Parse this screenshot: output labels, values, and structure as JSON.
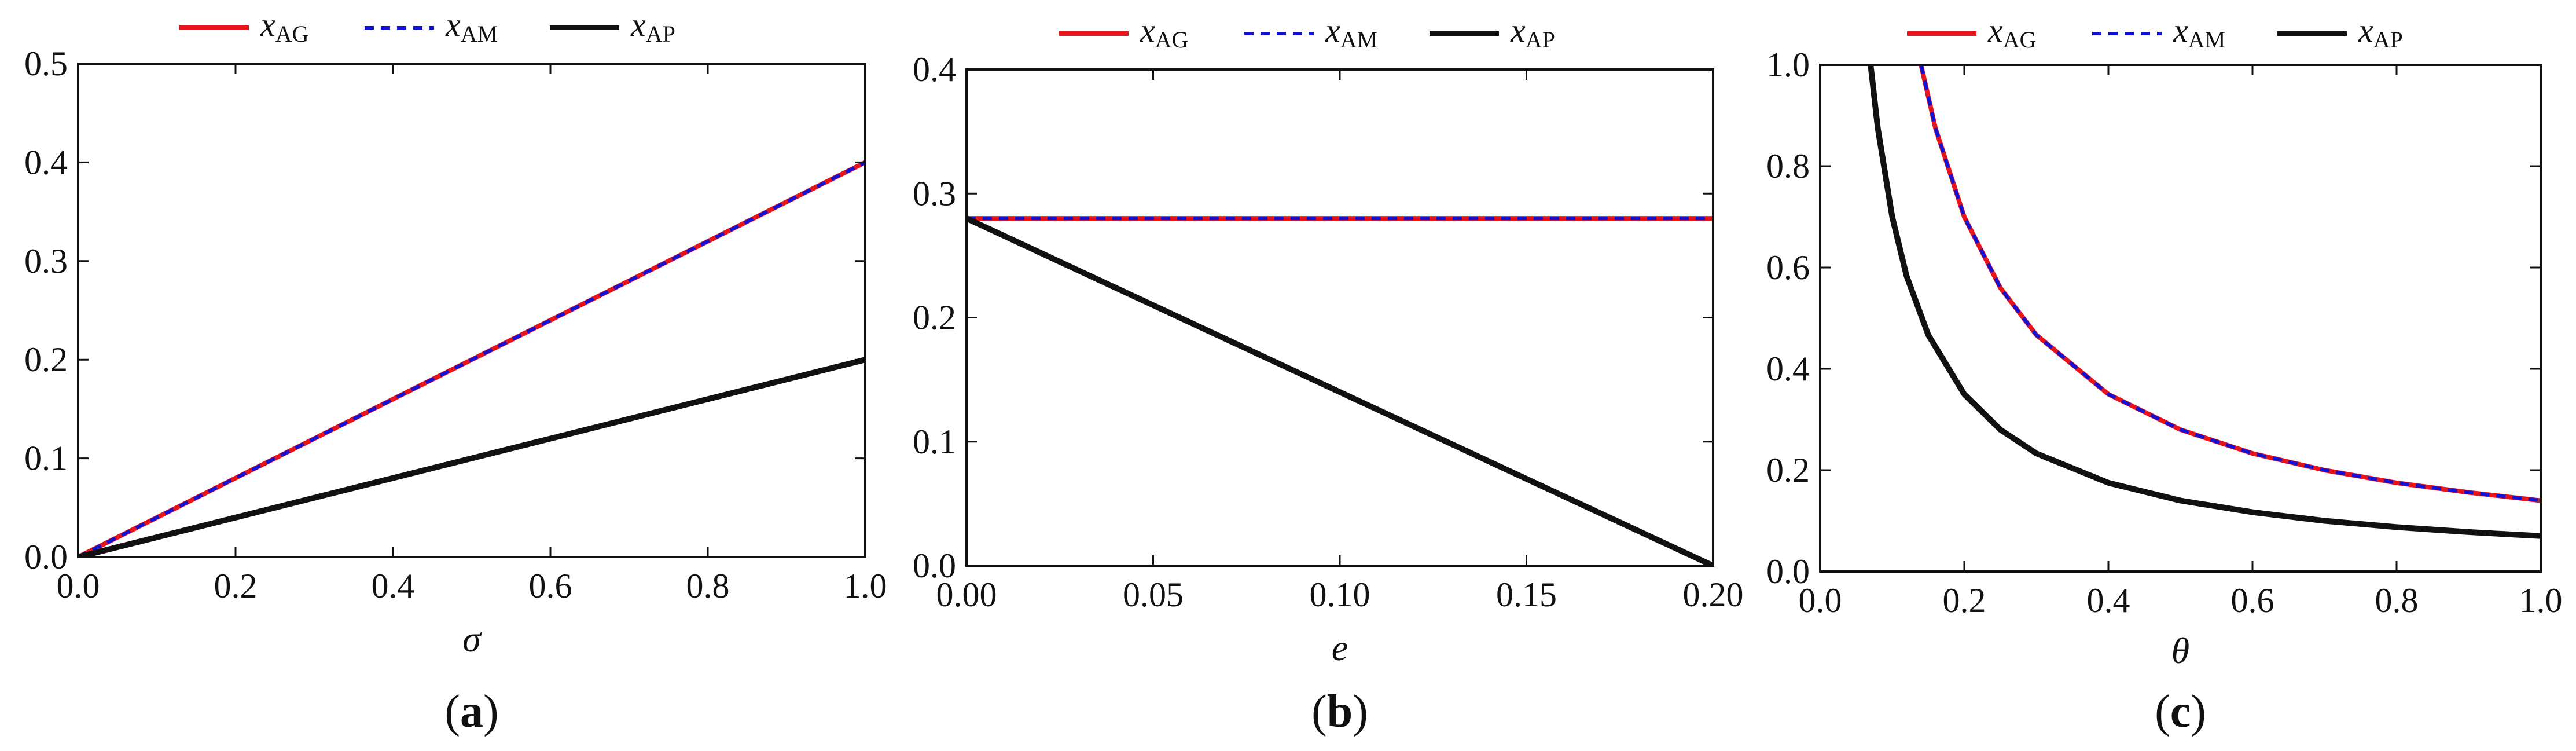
{
  "chart_data": [
    {
      "type": "line",
      "panel_label": "(a)",
      "panel_letter": "a",
      "xlabel": "σ",
      "ylabel": "",
      "xlim": [
        0,
        1
      ],
      "ylim": [
        0,
        0.5
      ],
      "xticks": [
        0,
        0.2,
        0.4,
        0.6,
        0.8,
        1.0
      ],
      "xtick_labels": [
        "0.0",
        "0.2",
        "0.4",
        "0.6",
        "0.8",
        "1.0"
      ],
      "yticks": [
        0,
        0.1,
        0.2,
        0.3,
        0.4,
        0.5
      ],
      "ytick_labels": [
        "0.0",
        "0.1",
        "0.2",
        "0.3",
        "0.4",
        "0.5"
      ],
      "legend": [
        "x_AG",
        "x_AM",
        "x_AP"
      ],
      "legend_position": "top-center",
      "series": [
        {
          "name": "x_AG",
          "x": [
            0,
            1
          ],
          "y": [
            0,
            0.4
          ]
        },
        {
          "name": "x_AM",
          "x": [
            0,
            1
          ],
          "y": [
            0,
            0.4
          ]
        },
        {
          "name": "x_AP",
          "x": [
            0,
            1
          ],
          "y": [
            0,
            0.2
          ]
        }
      ]
    },
    {
      "type": "line",
      "panel_label": "(b)",
      "panel_letter": "b",
      "xlabel": "e",
      "ylabel": "",
      "xlim": [
        0,
        0.2
      ],
      "ylim": [
        0,
        0.4
      ],
      "xticks": [
        0,
        0.05,
        0.1,
        0.15,
        0.2
      ],
      "xtick_labels": [
        "0.00",
        "0.05",
        "0.10",
        "0.15",
        "0.20"
      ],
      "yticks": [
        0,
        0.1,
        0.2,
        0.3,
        0.4
      ],
      "ytick_labels": [
        "0.0",
        "0.1",
        "0.2",
        "0.3",
        "0.4"
      ],
      "legend": [
        "x_AG",
        "x_AM",
        "x_AP"
      ],
      "legend_position": "top-center",
      "series": [
        {
          "name": "x_AG",
          "x": [
            0,
            0.2
          ],
          "y": [
            0.28,
            0.28
          ]
        },
        {
          "name": "x_AM",
          "x": [
            0,
            0.2
          ],
          "y": [
            0.28,
            0.28
          ]
        },
        {
          "name": "x_AP",
          "x": [
            0,
            0.2
          ],
          "y": [
            0.28,
            0
          ]
        }
      ]
    },
    {
      "type": "line",
      "panel_label": "(c)",
      "panel_letter": "c",
      "xlabel": "θ",
      "ylabel": "",
      "xlim": [
        0,
        1
      ],
      "ylim": [
        0,
        1
      ],
      "xticks": [
        0,
        0.2,
        0.4,
        0.6,
        0.8,
        1.0
      ],
      "xtick_labels": [
        "0.0",
        "0.2",
        "0.4",
        "0.6",
        "0.8",
        "1.0"
      ],
      "yticks": [
        0,
        0.2,
        0.4,
        0.6,
        0.8,
        1.0
      ],
      "ytick_labels": [
        "0.0",
        "0.2",
        "0.4",
        "0.6",
        "0.8",
        "1.0"
      ],
      "legend": [
        "x_AG",
        "x_AM",
        "x_AP"
      ],
      "legend_position": "top-center",
      "series": [
        {
          "name": "x_AG",
          "x": [
            0.14,
            0.16,
            0.2,
            0.25,
            0.3,
            0.4,
            0.5,
            0.6,
            0.7,
            0.8,
            0.9,
            1.0
          ],
          "y": [
            1.0,
            0.875,
            0.7,
            0.56,
            0.467,
            0.35,
            0.28,
            0.233,
            0.2,
            0.175,
            0.156,
            0.14
          ]
        },
        {
          "name": "x_AM",
          "x": [
            0.14,
            0.16,
            0.2,
            0.25,
            0.3,
            0.4,
            0.5,
            0.6,
            0.7,
            0.8,
            0.9,
            1.0
          ],
          "y": [
            1.0,
            0.875,
            0.7,
            0.56,
            0.467,
            0.35,
            0.28,
            0.233,
            0.2,
            0.175,
            0.156,
            0.14
          ]
        },
        {
          "name": "x_AP",
          "x": [
            0.07,
            0.08,
            0.1,
            0.12,
            0.15,
            0.2,
            0.25,
            0.3,
            0.4,
            0.5,
            0.6,
            0.7,
            0.8,
            0.9,
            1.0
          ],
          "y": [
            1.0,
            0.875,
            0.7,
            0.583,
            0.467,
            0.35,
            0.28,
            0.233,
            0.175,
            0.14,
            0.117,
            0.1,
            0.0875,
            0.0778,
            0.07
          ]
        }
      ]
    }
  ],
  "legend_entries": [
    {
      "var": "x",
      "sub": "AG",
      "color": "#e8141b",
      "style": "solid"
    },
    {
      "var": "x",
      "sub": "AM",
      "color": "#1212d6",
      "style": "dashed"
    },
    {
      "var": "x",
      "sub": "AP",
      "color": "#111111",
      "style": "solid"
    }
  ],
  "colors": {
    "AG": "#e8141b",
    "AM": "#1212d6",
    "AP": "#111111",
    "axis": "#111111"
  }
}
